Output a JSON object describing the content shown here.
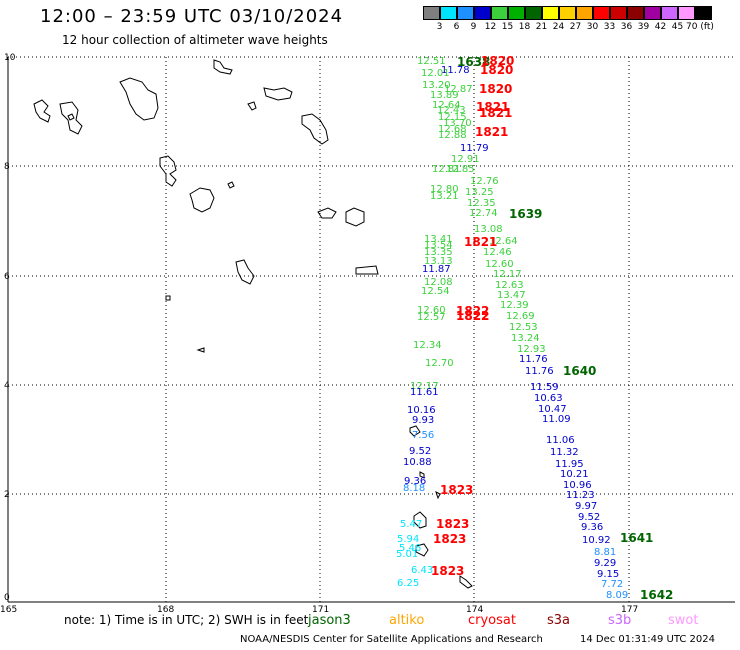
{
  "header": {
    "title": "12:00 – 23:59 UTC 03/10/2024",
    "subtitle": "12 hour collection of altimeter wave heights"
  },
  "color_scale": {
    "labels": [
      "3",
      "6",
      "9",
      "12",
      "15",
      "18",
      "21",
      "24",
      "27",
      "30",
      "33",
      "36",
      "39",
      "42",
      "45",
      "70 (ft)"
    ],
    "colors": [
      "#7f7f7f",
      "#00e5ff",
      "#1e90ff",
      "#0000cc",
      "#3cd13c",
      "#00b000",
      "#006400",
      "#ffff00",
      "#ffd000",
      "#ffa500",
      "#ff0000",
      "#cc0000",
      "#8b0000",
      "#a000a0",
      "#cc66ff",
      "#ff99ff",
      "#000000"
    ]
  },
  "map": {
    "x_ticks": [
      "165",
      "168",
      "171",
      "174",
      "177"
    ],
    "y_ticks": [
      "10",
      "8",
      "6",
      "4",
      "2",
      "0"
    ],
    "observations": [
      {
        "t": "12.51",
        "c": "#3cd13c"
      },
      {
        "t": "11.78",
        "c": "#0000cc"
      },
      {
        "t": "12.01",
        "c": "#3cd13c"
      },
      {
        "t": "13.20",
        "c": "#3cd13c"
      },
      {
        "t": "12.87",
        "c": "#3cd13c"
      },
      {
        "t": "13.89",
        "c": "#3cd13c"
      },
      {
        "t": "12.64",
        "c": "#3cd13c"
      },
      {
        "t": "12.43",
        "c": "#3cd13c"
      },
      {
        "t": "12.15",
        "c": "#3cd13c"
      },
      {
        "t": "13.70",
        "c": "#3cd13c"
      },
      {
        "t": "12.68",
        "c": "#3cd13c"
      },
      {
        "t": "12.88",
        "c": "#3cd13c"
      },
      {
        "t": "11.79",
        "c": "#0000cc"
      },
      {
        "t": "12.91",
        "c": "#3cd13c"
      },
      {
        "t": "12.81",
        "c": "#3cd13c"
      },
      {
        "t": "12.85",
        "c": "#3cd13c"
      },
      {
        "t": "12.76",
        "c": "#3cd13c"
      },
      {
        "t": "12.80",
        "c": "#3cd13c"
      },
      {
        "t": "13.21",
        "c": "#3cd13c"
      },
      {
        "t": "13.25",
        "c": "#3cd13c"
      },
      {
        "t": "12.35",
        "c": "#3cd13c"
      },
      {
        "t": "12.74",
        "c": "#3cd13c"
      },
      {
        "t": "13.08",
        "c": "#3cd13c"
      },
      {
        "t": "13.41",
        "c": "#3cd13c"
      },
      {
        "t": "13.54",
        "c": "#3cd13c"
      },
      {
        "t": "12.64",
        "c": "#3cd13c"
      },
      {
        "t": "13.35",
        "c": "#3cd13c"
      },
      {
        "t": "12.46",
        "c": "#3cd13c"
      },
      {
        "t": "13.13",
        "c": "#3cd13c"
      },
      {
        "t": "12.60",
        "c": "#3cd13c"
      },
      {
        "t": "11.87",
        "c": "#0000cc"
      },
      {
        "t": "12.17",
        "c": "#3cd13c"
      },
      {
        "t": "12.08",
        "c": "#3cd13c"
      },
      {
        "t": "12.63",
        "c": "#3cd13c"
      },
      {
        "t": "12.54",
        "c": "#3cd13c"
      },
      {
        "t": "13.47",
        "c": "#3cd13c"
      },
      {
        "t": "12.39",
        "c": "#3cd13c"
      },
      {
        "t": "12.60",
        "c": "#3cd13c"
      },
      {
        "t": "12.57",
        "c": "#3cd13c"
      },
      {
        "t": "12.69",
        "c": "#3cd13c"
      },
      {
        "t": "12.53",
        "c": "#3cd13c"
      },
      {
        "t": "13.24",
        "c": "#3cd13c"
      },
      {
        "t": "12.34",
        "c": "#3cd13c"
      },
      {
        "t": "12.93",
        "c": "#3cd13c"
      },
      {
        "t": "12.70",
        "c": "#3cd13c"
      },
      {
        "t": "11.76",
        "c": "#0000cc"
      },
      {
        "t": "12.17",
        "c": "#3cd13c"
      },
      {
        "t": "11.76",
        "c": "#0000cc"
      },
      {
        "t": "11.59",
        "c": "#0000cc"
      },
      {
        "t": "11.61",
        "c": "#0000cc"
      },
      {
        "t": "10.63",
        "c": "#0000cc"
      },
      {
        "t": "10.16",
        "c": "#0000cc"
      },
      {
        "t": "10.47",
        "c": "#0000cc"
      },
      {
        "t": "9.93",
        "c": "#0000cc"
      },
      {
        "t": "11.09",
        "c": "#0000cc"
      },
      {
        "t": "7.56",
        "c": "#1e90ff"
      },
      {
        "t": "11.06",
        "c": "#0000cc"
      },
      {
        "t": "9.52",
        "c": "#0000cc"
      },
      {
        "t": "11.32",
        "c": "#0000cc"
      },
      {
        "t": "10.88",
        "c": "#0000cc"
      },
      {
        "t": "11.95",
        "c": "#0000cc"
      },
      {
        "t": "10.21",
        "c": "#0000cc"
      },
      {
        "t": "9.36",
        "c": "#0000cc"
      },
      {
        "t": "10.96",
        "c": "#0000cc"
      },
      {
        "t": "8.18",
        "c": "#1e90ff"
      },
      {
        "t": "11.23",
        "c": "#0000cc"
      },
      {
        "t": "9.97",
        "c": "#0000cc"
      },
      {
        "t": "5.47",
        "c": "#00e5ff"
      },
      {
        "t": "9.52",
        "c": "#0000cc"
      },
      {
        "t": "5.94",
        "c": "#00e5ff"
      },
      {
        "t": "9.36",
        "c": "#0000cc"
      },
      {
        "t": "5.46",
        "c": "#00e5ff"
      },
      {
        "t": "10.92",
        "c": "#0000cc"
      },
      {
        "t": "5.01",
        "c": "#00e5ff"
      },
      {
        "t": "8.81",
        "c": "#1e90ff"
      },
      {
        "t": "6.43",
        "c": "#00e5ff"
      },
      {
        "t": "9.29",
        "c": "#0000cc"
      },
      {
        "t": "9.15",
        "c": "#0000cc"
      },
      {
        "t": "6.25",
        "c": "#00e5ff"
      },
      {
        "t": "7.72",
        "c": "#1e90ff"
      },
      {
        "t": "8.09",
        "c": "#1e90ff"
      }
    ],
    "pass_times": [
      {
        "t": "1638",
        "c": "#006400"
      },
      {
        "t": "1820",
        "c": "#ff0000"
      },
      {
        "t": "1820",
        "c": "#ff0000"
      },
      {
        "t": "1820",
        "c": "#ff0000"
      },
      {
        "t": "1821",
        "c": "#ff0000"
      },
      {
        "t": "1821",
        "c": "#ff0000"
      },
      {
        "t": "1821",
        "c": "#ff0000"
      },
      {
        "t": "1639",
        "c": "#006400"
      },
      {
        "t": "1821",
        "c": "#ff0000"
      },
      {
        "t": "1822",
        "c": "#ff0000"
      },
      {
        "t": "1822",
        "c": "#ff0000"
      },
      {
        "t": "1822",
        "c": "#ff0000"
      },
      {
        "t": "1640",
        "c": "#006400"
      },
      {
        "t": "1823",
        "c": "#ff0000"
      },
      {
        "t": "1823",
        "c": "#ff0000"
      },
      {
        "t": "1823",
        "c": "#ff0000"
      },
      {
        "t": "1641",
        "c": "#006400"
      },
      {
        "t": "1823",
        "c": "#ff0000"
      },
      {
        "t": "1642",
        "c": "#006400"
      }
    ]
  },
  "footer": {
    "note": "note: 1) Time is in UTC; 2) SWH is in feet",
    "satellites": [
      {
        "name": "jason3",
        "color": "#006400"
      },
      {
        "name": "altiko",
        "color": "#ffa500"
      },
      {
        "name": "cryosat",
        "color": "#ff0000"
      },
      {
        "name": "s3a",
        "color": "#8b0000"
      },
      {
        "name": "s3b",
        "color": "#cc66ff"
      },
      {
        "name": "swot",
        "color": "#ff99ff"
      }
    ],
    "credit": "NOAA/NESDIS Center for Satellite Applications and Research",
    "timestamp": "14 Dec 01:31:49 UTC 2024"
  }
}
